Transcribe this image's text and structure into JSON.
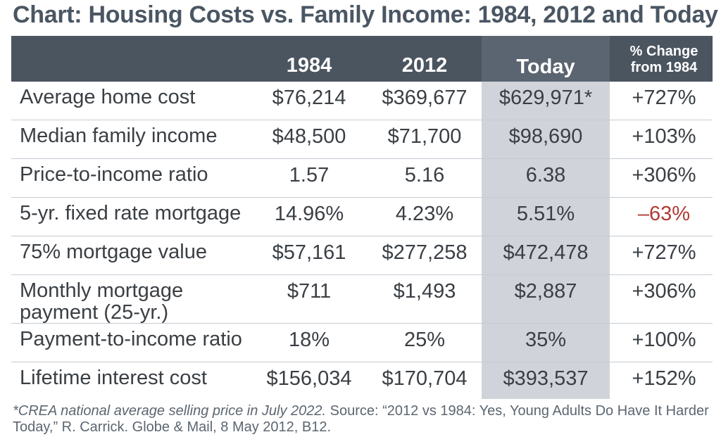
{
  "title": "Chart: Housing Costs vs. Family Income: 1984, 2012 and Today",
  "chart_data": {
    "type": "table",
    "title": "Chart: Housing Costs vs. Family Income: 1984, 2012 and Today",
    "columns": [
      "",
      "1984",
      "2012",
      "Today",
      "% Change\nfrom 1984"
    ],
    "columns_display": {
      "c1984": "1984",
      "c2012": "2012",
      "today": "Today",
      "pct_line1": "% Change",
      "pct_line2": "from 1984"
    },
    "rows": [
      {
        "label": "Average home cost",
        "v1984": "$76,214",
        "v2012": "$369,677",
        "today": "$629,971*",
        "pct": "+727%"
      },
      {
        "label": "Median family income",
        "v1984": "$48,500",
        "v2012": "$71,700",
        "today": "$98,690",
        "pct": "+103%"
      },
      {
        "label": "Price-to-income ratio",
        "v1984": "1.57",
        "v2012": "5.16",
        "today": "6.38",
        "pct": "+306%"
      },
      {
        "label": "5-yr. fixed rate mortgage",
        "v1984": "14.96%",
        "v2012": "4.23%",
        "today": "5.51%",
        "pct": "–63%"
      },
      {
        "label": "75% mortgage value",
        "v1984": "$57,161",
        "v2012": "$277,258",
        "today": "$472,478",
        "pct": "+727%"
      },
      {
        "label": "Monthly mortgage payment (25-yr.)",
        "v1984": "$711",
        "v2012": "$1,493",
        "today": "$2,887",
        "pct": "+306%"
      },
      {
        "label": "Payment-to-income ratio",
        "v1984": "18%",
        "v2012": "25%",
        "today": "35%",
        "pct": "+100%"
      },
      {
        "label": "Lifetime interest cost",
        "v1984": "$156,034",
        "v2012": "$170,704",
        "today": "$393,537",
        "pct": "+152%"
      }
    ]
  },
  "footnote": {
    "italic": "*CREA national average selling price in July 2022.",
    "source": " Source: “2012 vs 1984: Yes, Young Adults Do Have It Harder Today,” R. Carrick. Globe & Mail, 8 May 2012, B12."
  },
  "colors": {
    "header_bg": "#4b5560",
    "today_col_bg": "#d0d4da",
    "negative": "#b03a36",
    "title": "#4a5663"
  }
}
